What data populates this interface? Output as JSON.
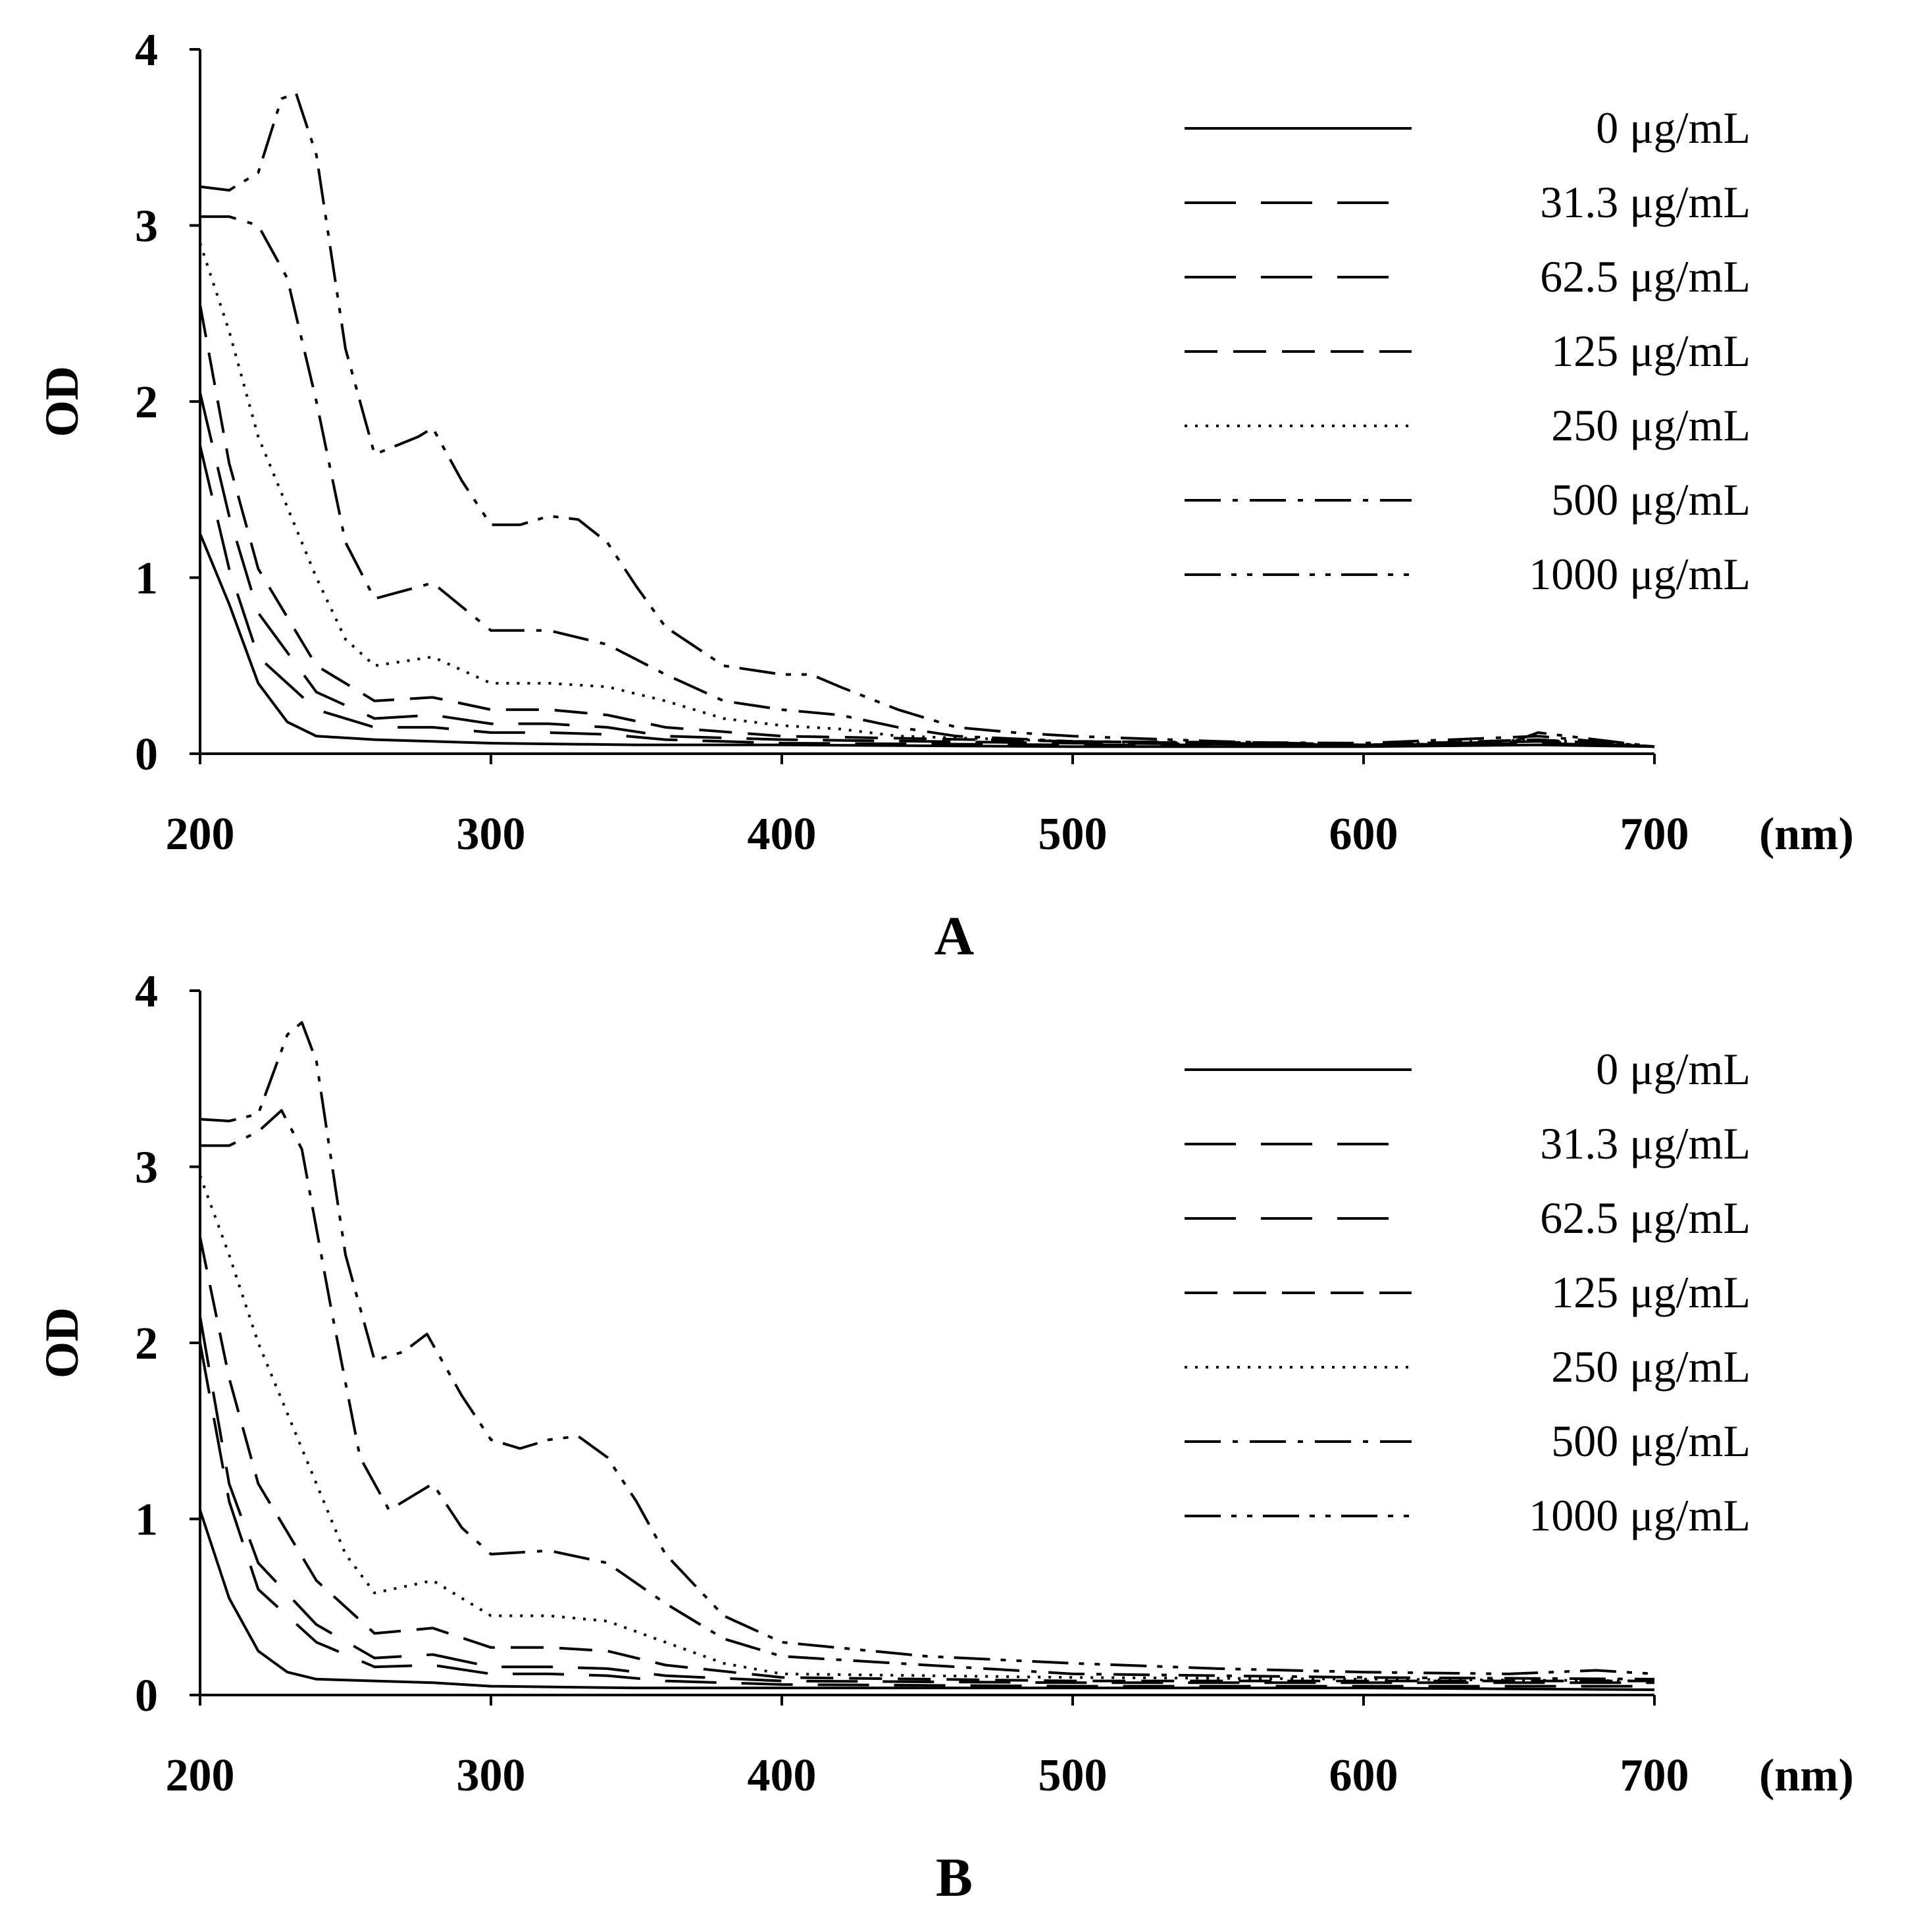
{
  "figure": {
    "panels": [
      "A",
      "B"
    ]
  },
  "chart_data": [
    {
      "type": "line",
      "panel_label": "A",
      "title": "",
      "xlabel": "(nm)",
      "ylabel": "OD",
      "xlim": [
        200,
        700
      ],
      "ylim": [
        0,
        4
      ],
      "x_ticks": [
        200,
        300,
        400,
        500,
        600,
        700
      ],
      "y_ticks": [
        0,
        1,
        2,
        3,
        4
      ],
      "legend_position": "top-right",
      "series": [
        {
          "name": "0 μg/mL",
          "dash": "solid",
          "x": [
            200,
            210,
            220,
            230,
            240,
            260,
            280,
            300,
            350,
            400,
            500,
            600,
            660,
            700
          ],
          "values": [
            1.25,
            0.85,
            0.4,
            0.18,
            0.1,
            0.08,
            0.07,
            0.06,
            0.05,
            0.05,
            0.04,
            0.04,
            0.05,
            0.04
          ]
        },
        {
          "name": "31.3 μg/mL",
          "dash": "long-dash",
          "x": [
            200,
            210,
            220,
            240,
            260,
            280,
            300,
            320,
            340,
            360,
            400,
            500,
            600,
            660,
            700
          ],
          "values": [
            1.75,
            1.05,
            0.55,
            0.25,
            0.15,
            0.15,
            0.12,
            0.12,
            0.11,
            0.08,
            0.06,
            0.05,
            0.05,
            0.06,
            0.04
          ]
        },
        {
          "name": "62.5 μg/mL",
          "dash": "long-dash",
          "x": [
            200,
            210,
            220,
            240,
            260,
            280,
            300,
            320,
            340,
            360,
            400,
            500,
            600,
            660,
            700
          ],
          "values": [
            2.05,
            1.35,
            0.8,
            0.35,
            0.2,
            0.22,
            0.17,
            0.17,
            0.15,
            0.1,
            0.08,
            0.06,
            0.05,
            0.07,
            0.04
          ]
        },
        {
          "name": "125 μg/mL",
          "dash": "dash",
          "x": [
            200,
            210,
            220,
            240,
            260,
            280,
            300,
            320,
            340,
            360,
            400,
            500,
            600,
            660,
            700
          ],
          "values": [
            2.55,
            1.65,
            1.05,
            0.5,
            0.3,
            0.32,
            0.25,
            0.25,
            0.22,
            0.15,
            0.1,
            0.07,
            0.05,
            0.08,
            0.04
          ]
        },
        {
          "name": "250 μg/mL",
          "dash": "dot",
          "x": [
            200,
            210,
            220,
            240,
            250,
            260,
            280,
            300,
            320,
            340,
            360,
            380,
            400,
            420,
            440,
            500,
            600,
            660,
            700
          ],
          "values": [
            2.9,
            2.4,
            1.8,
            1.0,
            0.65,
            0.5,
            0.55,
            0.4,
            0.4,
            0.38,
            0.3,
            0.2,
            0.16,
            0.14,
            0.1,
            0.07,
            0.05,
            0.08,
            0.04
          ]
        },
        {
          "name": "500 μg/mL",
          "dash": "dash-dot",
          "x": [
            200,
            210,
            220,
            230,
            240,
            250,
            260,
            280,
            300,
            320,
            340,
            360,
            380,
            400,
            420,
            440,
            460,
            500,
            600,
            660,
            700
          ],
          "values": [
            3.05,
            3.05,
            3.0,
            2.7,
            2.0,
            1.2,
            0.88,
            0.97,
            0.7,
            0.7,
            0.62,
            0.45,
            0.3,
            0.25,
            0.22,
            0.15,
            0.1,
            0.07,
            0.06,
            0.1,
            0.04
          ]
        },
        {
          "name": "1000 μg/mL",
          "dash": "dash-dot-dot",
          "x": [
            200,
            210,
            220,
            228,
            233,
            240,
            250,
            260,
            275,
            280,
            290,
            300,
            310,
            320,
            330,
            340,
            350,
            360,
            380,
            400,
            410,
            420,
            440,
            460,
            480,
            500,
            550,
            600,
            650,
            660,
            670,
            700
          ],
          "values": [
            3.22,
            3.2,
            3.3,
            3.72,
            3.75,
            3.4,
            2.3,
            1.7,
            1.8,
            1.85,
            1.55,
            1.3,
            1.3,
            1.35,
            1.33,
            1.2,
            0.95,
            0.72,
            0.5,
            0.45,
            0.45,
            0.38,
            0.25,
            0.15,
            0.12,
            0.1,
            0.07,
            0.05,
            0.06,
            0.12,
            0.1,
            0.04
          ]
        }
      ]
    },
    {
      "type": "line",
      "panel_label": "B",
      "title": "",
      "xlabel": "(nm)",
      "ylabel": "OD",
      "xlim": [
        200,
        700
      ],
      "ylim": [
        0,
        4
      ],
      "x_ticks": [
        200,
        300,
        400,
        500,
        600,
        700
      ],
      "y_ticks": [
        0,
        1,
        2,
        3,
        4
      ],
      "legend_position": "top-right",
      "series": [
        {
          "name": "0 μg/mL",
          "dash": "solid",
          "x": [
            200,
            210,
            220,
            230,
            240,
            260,
            280,
            300,
            350,
            400,
            500,
            600,
            700
          ],
          "values": [
            1.05,
            0.55,
            0.25,
            0.13,
            0.09,
            0.08,
            0.07,
            0.05,
            0.04,
            0.04,
            0.04,
            0.04,
            0.03
          ]
        },
        {
          "name": "31.3 μg/mL",
          "dash": "long-dash",
          "x": [
            200,
            210,
            220,
            240,
            260,
            280,
            300,
            320,
            340,
            360,
            400,
            500,
            600,
            700
          ],
          "values": [
            2.0,
            1.1,
            0.6,
            0.3,
            0.16,
            0.17,
            0.12,
            0.12,
            0.11,
            0.08,
            0.06,
            0.05,
            0.05,
            0.05
          ]
        },
        {
          "name": "62.5 μg/mL",
          "dash": "long-dash",
          "x": [
            200,
            210,
            220,
            240,
            260,
            280,
            300,
            320,
            340,
            360,
            400,
            500,
            600,
            700
          ],
          "values": [
            2.15,
            1.2,
            0.75,
            0.4,
            0.21,
            0.23,
            0.16,
            0.16,
            0.15,
            0.11,
            0.08,
            0.07,
            0.07,
            0.07
          ]
        },
        {
          "name": "125 μg/mL",
          "dash": "dash",
          "x": [
            200,
            210,
            220,
            240,
            260,
            280,
            300,
            320,
            340,
            360,
            400,
            500,
            600,
            700
          ],
          "values": [
            2.6,
            1.8,
            1.2,
            0.65,
            0.35,
            0.38,
            0.27,
            0.27,
            0.25,
            0.17,
            0.1,
            0.08,
            0.08,
            0.08
          ]
        },
        {
          "name": "250 μg/mL",
          "dash": "dot",
          "x": [
            200,
            210,
            220,
            240,
            250,
            260,
            280,
            300,
            320,
            340,
            360,
            380,
            400,
            500,
            600,
            700
          ],
          "values": [
            2.95,
            2.5,
            2.0,
            1.2,
            0.8,
            0.58,
            0.65,
            0.45,
            0.45,
            0.42,
            0.3,
            0.18,
            0.12,
            0.1,
            0.09,
            0.08
          ]
        },
        {
          "name": "500 μg/mL",
          "dash": "dash-dot",
          "x": [
            200,
            210,
            220,
            228,
            235,
            245,
            255,
            265,
            280,
            290,
            300,
            320,
            340,
            360,
            380,
            400,
            500,
            600,
            700
          ],
          "values": [
            3.12,
            3.12,
            3.2,
            3.32,
            3.1,
            2.2,
            1.35,
            1.05,
            1.2,
            0.95,
            0.8,
            0.82,
            0.75,
            0.52,
            0.32,
            0.22,
            0.12,
            0.1,
            0.09
          ]
        },
        {
          "name": "1000 μg/mL",
          "dash": "dash-dot-dot",
          "x": [
            200,
            210,
            220,
            230,
            235,
            240,
            250,
            260,
            270,
            278,
            290,
            300,
            310,
            320,
            330,
            340,
            350,
            360,
            380,
            400,
            450,
            500,
            550,
            600,
            650,
            680,
            700
          ],
          "values": [
            3.27,
            3.26,
            3.3,
            3.75,
            3.82,
            3.6,
            2.5,
            1.9,
            1.95,
            2.05,
            1.7,
            1.45,
            1.4,
            1.45,
            1.47,
            1.35,
            1.1,
            0.8,
            0.45,
            0.3,
            0.22,
            0.18,
            0.15,
            0.13,
            0.12,
            0.14,
            0.12
          ]
        }
      ]
    }
  ]
}
